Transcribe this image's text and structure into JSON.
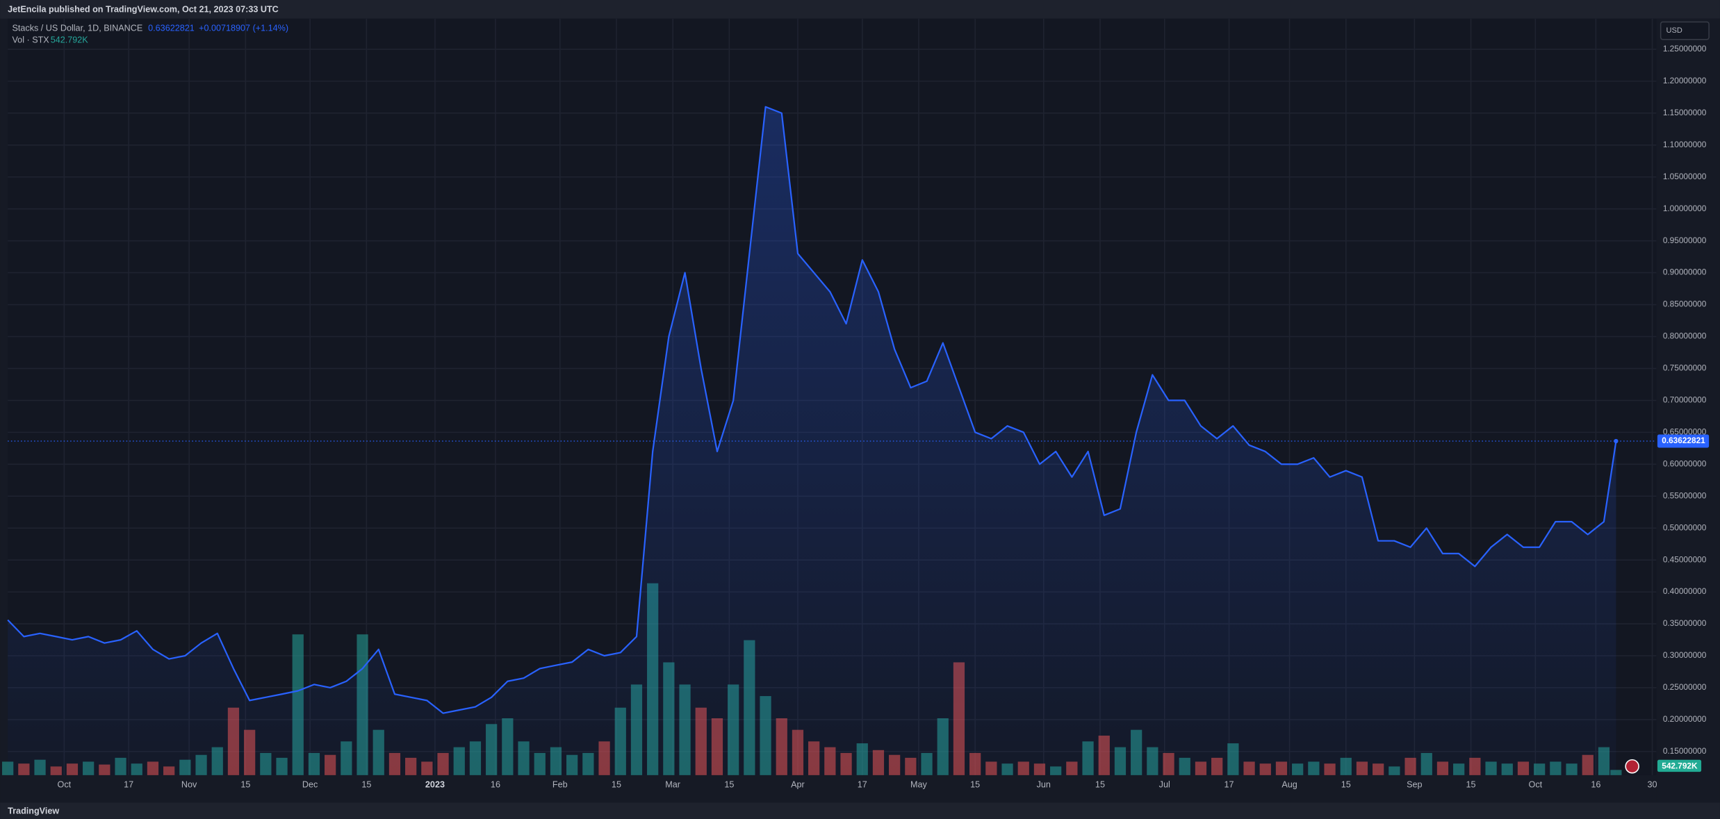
{
  "header": {
    "publisher": "JetEncila published on TradingView.com, Oct 21, 2023 07:33 UTC",
    "footer": "TradingView"
  },
  "chart_data": {
    "type": "line",
    "title": "Stacks / US Dollar, 1D, BINANCE",
    "change": "+0.00718907 (+1.14%)",
    "currency": "USD",
    "x": [
      "2022-09-17",
      "2022-09-21",
      "2022-09-25",
      "2022-09-29",
      "2022-10-03",
      "2022-10-07",
      "2022-10-11",
      "2022-10-15",
      "2022-10-19",
      "2022-10-23",
      "2022-10-27",
      "2022-10-31",
      "2022-11-04",
      "2022-11-08",
      "2022-11-12",
      "2022-11-16",
      "2022-11-20",
      "2022-11-24",
      "2022-11-28",
      "2022-12-02",
      "2022-12-06",
      "2022-12-10",
      "2022-12-14",
      "2022-12-18",
      "2022-12-22",
      "2022-12-26",
      "2022-12-30",
      "2023-01-03",
      "2023-01-07",
      "2023-01-11",
      "2023-01-15",
      "2023-01-19",
      "2023-01-23",
      "2023-01-27",
      "2023-01-31",
      "2023-02-04",
      "2023-02-08",
      "2023-02-12",
      "2023-02-16",
      "2023-02-20",
      "2023-02-24",
      "2023-02-28",
      "2023-03-04",
      "2023-03-08",
      "2023-03-12",
      "2023-03-16",
      "2023-03-20",
      "2023-03-24",
      "2023-03-28",
      "2023-04-01",
      "2023-04-05",
      "2023-04-09",
      "2023-04-13",
      "2023-04-17",
      "2023-04-21",
      "2023-04-25",
      "2023-04-29",
      "2023-05-03",
      "2023-05-07",
      "2023-05-11",
      "2023-05-15",
      "2023-05-19",
      "2023-05-23",
      "2023-05-27",
      "2023-05-31",
      "2023-06-04",
      "2023-06-08",
      "2023-06-12",
      "2023-06-16",
      "2023-06-20",
      "2023-06-24",
      "2023-06-28",
      "2023-07-02",
      "2023-07-06",
      "2023-07-10",
      "2023-07-14",
      "2023-07-18",
      "2023-07-22",
      "2023-07-26",
      "2023-07-30",
      "2023-08-03",
      "2023-08-07",
      "2023-08-11",
      "2023-08-15",
      "2023-08-19",
      "2023-08-23",
      "2023-08-27",
      "2023-08-31",
      "2023-09-04",
      "2023-09-08",
      "2023-09-12",
      "2023-09-16",
      "2023-09-20",
      "2023-09-24",
      "2023-09-28",
      "2023-10-02",
      "2023-10-06",
      "2023-10-10",
      "2023-10-14",
      "2023-10-18",
      "2023-10-21"
    ],
    "series": [
      {
        "name": "Stacks / US Dollar",
        "color": "#2962ff",
        "values": [
          0.356,
          0.33,
          0.335,
          0.33,
          0.325,
          0.33,
          0.32,
          0.325,
          0.339,
          0.31,
          0.295,
          0.3,
          0.32,
          0.335,
          0.28,
          0.23,
          0.235,
          0.24,
          0.245,
          0.255,
          0.25,
          0.26,
          0.28,
          0.31,
          0.24,
          0.235,
          0.23,
          0.21,
          0.215,
          0.22,
          0.235,
          0.26,
          0.265,
          0.28,
          0.285,
          0.29,
          0.31,
          0.3,
          0.305,
          0.33,
          0.62,
          0.8,
          0.9,
          0.75,
          0.62,
          0.7,
          0.93,
          1.16,
          1.15,
          0.93,
          0.9,
          0.87,
          0.82,
          0.92,
          0.87,
          0.78,
          0.72,
          0.73,
          0.79,
          0.72,
          0.65,
          0.64,
          0.66,
          0.65,
          0.6,
          0.62,
          0.58,
          0.62,
          0.52,
          0.53,
          0.65,
          0.74,
          0.7,
          0.7,
          0.66,
          0.64,
          0.66,
          0.63,
          0.62,
          0.6,
          0.6,
          0.61,
          0.58,
          0.59,
          0.58,
          0.48,
          0.48,
          0.47,
          0.5,
          0.46,
          0.46,
          0.44,
          0.47,
          0.49,
          0.47,
          0.47,
          0.51,
          0.51,
          0.49,
          0.51,
          0.63622821
        ]
      }
    ],
    "volume": {
      "name": "Vol · STX",
      "up_color": "#26a69a",
      "down_color": "#ef5350",
      "last_value_label": "542.792K",
      "values": [
        1400000,
        1200000,
        1600000,
        900000,
        1200000,
        1400000,
        1100000,
        1800000,
        1200000,
        1400000,
        900000,
        1600000,
        2100000,
        2900000,
        7000000,
        4700000,
        2300000,
        1800000,
        14600000,
        2300000,
        2100000,
        3500000,
        14600000,
        4700000,
        2300000,
        1800000,
        1400000,
        2300000,
        2900000,
        3500000,
        5300000,
        5900000,
        3500000,
        2300000,
        2900000,
        2100000,
        2300000,
        3500000,
        7000000,
        9400000,
        19900000,
        11700000,
        9400000,
        7000000,
        5900000,
        9400000,
        14000000,
        8200000,
        5900000,
        4700000,
        3500000,
        2900000,
        2300000,
        3300000,
        2600000,
        2100000,
        1800000,
        2300000,
        5900000,
        11700000,
        2300000,
        1400000,
        1200000,
        1400000,
        1200000,
        900000,
        1400000,
        3500000,
        4100000,
        2900000,
        4700000,
        2900000,
        2300000,
        1800000,
        1400000,
        1800000,
        3300000,
        1400000,
        1200000,
        1400000,
        1200000,
        1400000,
        1200000,
        1800000,
        1400000,
        1200000,
        900000,
        1800000,
        2300000,
        1400000,
        1200000,
        1800000,
        1400000,
        1200000,
        1400000,
        1200000,
        1400000,
        1200000,
        2100000,
        2900000,
        542792
      ]
    },
    "xlim": [
      "2022-09-17",
      "2023-10-31"
    ],
    "xticks": [
      {
        "value": "2022-10-01",
        "label": "Oct"
      },
      {
        "value": "2022-10-17",
        "label": "17"
      },
      {
        "value": "2022-11-01",
        "label": "Nov"
      },
      {
        "value": "2022-11-15",
        "label": "15"
      },
      {
        "value": "2022-12-01",
        "label": "Dec"
      },
      {
        "value": "2022-12-15",
        "label": "15"
      },
      {
        "value": "2023-01-01",
        "label": "2023"
      },
      {
        "value": "2023-01-16",
        "label": "16"
      },
      {
        "value": "2023-02-01",
        "label": "Feb"
      },
      {
        "value": "2023-02-15",
        "label": "15"
      },
      {
        "value": "2023-03-01",
        "label": "Mar"
      },
      {
        "value": "2023-03-15",
        "label": "15"
      },
      {
        "value": "2023-04-01",
        "label": "Apr"
      },
      {
        "value": "2023-04-17",
        "label": "17"
      },
      {
        "value": "2023-05-01",
        "label": "May"
      },
      {
        "value": "2023-05-15",
        "label": "15"
      },
      {
        "value": "2023-06-01",
        "label": "Jun"
      },
      {
        "value": "2023-06-15",
        "label": "15"
      },
      {
        "value": "2023-07-01",
        "label": "Jul"
      },
      {
        "value": "2023-07-17",
        "label": "17"
      },
      {
        "value": "2023-08-01",
        "label": "Aug"
      },
      {
        "value": "2023-08-15",
        "label": "15"
      },
      {
        "value": "2023-09-01",
        "label": "Sep"
      },
      {
        "value": "2023-09-15",
        "label": "15"
      },
      {
        "value": "2023-10-01",
        "label": "Oct"
      },
      {
        "value": "2023-10-16",
        "label": "16"
      },
      {
        "value": "2023-10-30",
        "label": "30"
      }
    ],
    "ylim": [
      0.113,
      1.298
    ],
    "yticks": [
      {
        "value": 0.15,
        "label": "0.15000000"
      },
      {
        "value": 0.2,
        "label": "0.20000000"
      },
      {
        "value": 0.25,
        "label": "0.25000000"
      },
      {
        "value": 0.3,
        "label": "0.30000000"
      },
      {
        "value": 0.35,
        "label": "0.35000000"
      },
      {
        "value": 0.4,
        "label": "0.40000000"
      },
      {
        "value": 0.45,
        "label": "0.45000000"
      },
      {
        "value": 0.5,
        "label": "0.50000000"
      },
      {
        "value": 0.55,
        "label": "0.55000000"
      },
      {
        "value": 0.6,
        "label": "0.60000000"
      },
      {
        "value": 0.65,
        "label": "0.65000000"
      },
      {
        "value": 0.7,
        "label": "0.70000000"
      },
      {
        "value": 0.75,
        "label": "0.75000000"
      },
      {
        "value": 0.8,
        "label": "0.80000000"
      },
      {
        "value": 0.85,
        "label": "0.85000000"
      },
      {
        "value": 0.9,
        "label": "0.90000000"
      },
      {
        "value": 0.95,
        "label": "0.95000000"
      },
      {
        "value": 1.0,
        "label": "1.00000000"
      },
      {
        "value": 1.05,
        "label": "1.05000000"
      },
      {
        "value": 1.1,
        "label": "1.10000000"
      },
      {
        "value": 1.15,
        "label": "1.15000000"
      },
      {
        "value": 1.2,
        "label": "1.20000000"
      },
      {
        "value": 1.25,
        "label": "1.25000000"
      }
    ],
    "grid": true
  }
}
